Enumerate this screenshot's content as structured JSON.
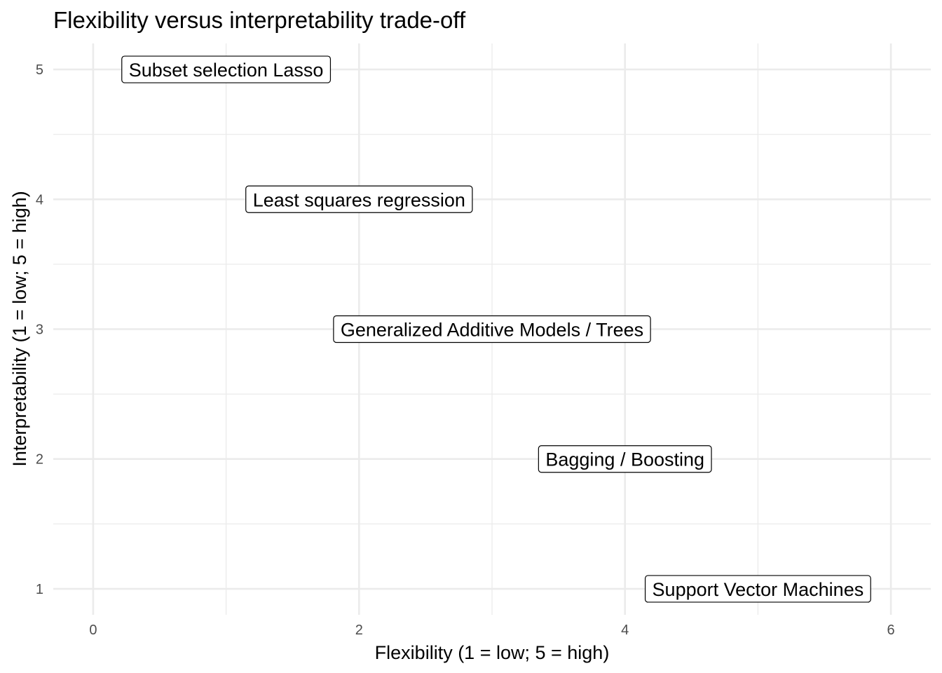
{
  "chart_data": {
    "type": "scatter",
    "title": "Flexibility versus interpretability trade-off",
    "xlabel": "Flexibility (1 = low; 5 = high)",
    "ylabel": "Interpretability (1 = low; 5 = high)",
    "xlim": [
      -0.3,
      6.3
    ],
    "ylim": [
      0.8,
      5.2
    ],
    "x_ticks": [
      0,
      2,
      4,
      6
    ],
    "x_tick_labels": [
      "0",
      "2",
      "4",
      "6"
    ],
    "y_ticks": [
      1,
      2,
      3,
      4,
      5
    ],
    "y_tick_labels": [
      "1",
      "2",
      "3",
      "4",
      "5"
    ],
    "grid": true,
    "points": [
      {
        "label": "Subset selection  Lasso",
        "x": 1.0,
        "y": 5
      },
      {
        "label": "Least squares regression",
        "x": 2.0,
        "y": 4
      },
      {
        "label": "Generalized Additive Models / Trees",
        "x": 3.0,
        "y": 3
      },
      {
        "label": "Bagging / Boosting",
        "x": 4.0,
        "y": 2
      },
      {
        "label": "Support Vector Machines",
        "x": 5.0,
        "y": 1
      }
    ]
  }
}
